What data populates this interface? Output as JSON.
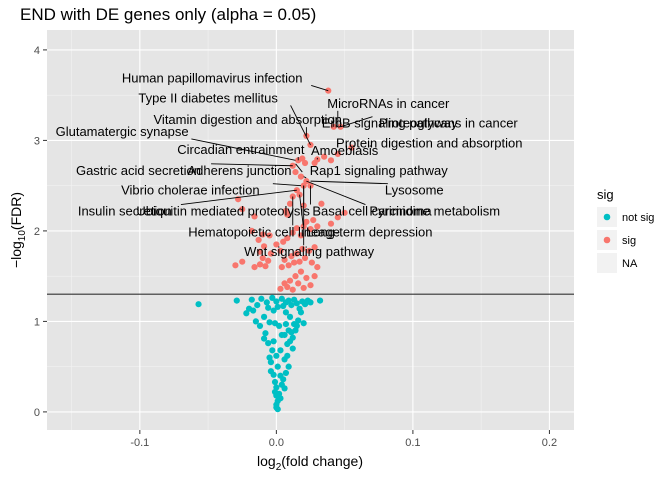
{
  "chart_data": {
    "type": "scatter",
    "title": "END with DE genes only (alpha = 0.05)",
    "xlabel_base": "log",
    "xlabel_sub": "2",
    "xlabel_rest": "(fold change)",
    "ylabel_pre": "−log",
    "ylabel_sub": "10",
    "ylabel_rest": "(FDR)",
    "xlim": [
      -0.168,
      0.218
    ],
    "ylim": [
      -0.2,
      4.22
    ],
    "x_ticks": [
      -0.1,
      0.0,
      0.1,
      0.2
    ],
    "x_tick_labels": [
      "-0.1",
      "0.0",
      "0.1",
      "0.2"
    ],
    "y_ticks": [
      0,
      1,
      2,
      3,
      4
    ],
    "y_tick_labels": [
      "0",
      "1",
      "2",
      "3",
      "4"
    ],
    "hline": 1.301,
    "grid": true,
    "background": "#e5e5e5",
    "colors": {
      "not sig": "#00bfc4",
      "sig": "#f8766d",
      "line": "#333333"
    },
    "legend": {
      "title": "sig",
      "position": "right",
      "entries": [
        {
          "label": "not sig",
          "color": "#00bfc4"
        },
        {
          "label": "sig",
          "color": "#f8766d"
        },
        {
          "label": "NA",
          "color": null
        }
      ]
    },
    "series": [
      {
        "name": "not sig",
        "points": [
          [
            -0.057,
            1.19
          ],
          [
            -0.029,
            1.23
          ],
          [
            -0.022,
            1.09
          ],
          [
            -0.018,
            1.24
          ],
          [
            -0.017,
            1.12
          ],
          [
            -0.014,
            1.18
          ],
          [
            -0.011,
            1.25
          ],
          [
            -0.009,
            1.05
          ],
          [
            -0.007,
            1.21
          ],
          [
            -0.006,
            1.15
          ],
          [
            -0.005,
            0.99
          ],
          [
            -0.003,
            1.26
          ],
          [
            -0.002,
            1.12
          ],
          [
            -0.001,
            0.98
          ],
          [
            0.0,
            1.22
          ],
          [
            0.001,
            1.16
          ],
          [
            -0.012,
            0.95
          ],
          [
            -0.008,
            0.87
          ],
          [
            -0.006,
            0.76
          ],
          [
            -0.004,
            0.55
          ],
          [
            -0.003,
            0.68
          ],
          [
            -0.002,
            0.41
          ],
          [
            -0.001,
            0.33
          ],
          [
            0.0,
            0.27
          ],
          [
            0.0,
            0.18
          ],
          [
            0.001,
            0.12
          ],
          [
            0.0,
            0.05
          ],
          [
            0.001,
            0.03
          ],
          [
            0.0,
            0.08
          ],
          [
            -0.001,
            0.22
          ],
          [
            0.003,
            0.15
          ],
          [
            0.002,
            0.2
          ],
          [
            -0.004,
            0.45
          ],
          [
            -0.005,
            0.6
          ],
          [
            -0.009,
            0.81
          ],
          [
            0.004,
            1.25
          ],
          [
            0.005,
            1.17
          ],
          [
            0.007,
            1.21
          ],
          [
            0.009,
            1.23
          ],
          [
            0.011,
            1.18
          ],
          [
            0.013,
            1.24
          ],
          [
            0.015,
            1.2
          ],
          [
            0.017,
            1.14
          ],
          [
            0.019,
            1.22
          ],
          [
            0.021,
            1.19
          ],
          [
            0.023,
            1.23
          ],
          [
            0.025,
            1.21
          ],
          [
            0.032,
            1.23
          ],
          [
            0.007,
            0.97
          ],
          [
            0.009,
            0.9
          ],
          [
            0.011,
            0.88
          ],
          [
            0.013,
            0.97
          ],
          [
            0.015,
            0.95
          ],
          [
            0.016,
            1.01
          ],
          [
            0.006,
            0.85
          ],
          [
            0.01,
            0.78
          ],
          [
            0.012,
            0.7
          ],
          [
            0.008,
            0.62
          ],
          [
            0.006,
            0.58
          ],
          [
            0.009,
            0.5
          ],
          [
            0.007,
            0.43
          ],
          [
            0.005,
            0.36
          ],
          [
            0.004,
            0.3
          ],
          [
            0.006,
            0.26
          ],
          [
            0.003,
            0.4
          ],
          [
            0.008,
            0.75
          ],
          [
            0.012,
            0.82
          ],
          [
            0.014,
            0.9
          ],
          [
            0.01,
            1.05
          ],
          [
            0.02,
            0.98
          ],
          [
            0.018,
            1.1
          ],
          [
            0.002,
            0.95
          ],
          [
            -0.015,
            1.0
          ],
          [
            -0.02,
            1.14
          ],
          [
            0.0,
            0.62
          ],
          [
            0.001,
            0.5
          ],
          [
            -0.002,
            0.78
          ],
          [
            0.003,
            0.68
          ],
          [
            0.004,
            0.85
          ],
          [
            0.007,
            1.1
          ]
        ]
      },
      {
        "name": "sig",
        "points": [
          [
            -0.03,
            1.62
          ],
          [
            -0.025,
            1.66
          ],
          [
            -0.016,
            1.6
          ],
          [
            -0.012,
            1.63
          ],
          [
            -0.01,
            1.7
          ],
          [
            -0.008,
            1.61
          ],
          [
            -0.006,
            1.67
          ],
          [
            -0.004,
            1.75
          ],
          [
            -0.012,
            1.77
          ],
          [
            -0.009,
            1.83
          ],
          [
            -0.013,
            1.9
          ],
          [
            -0.01,
            1.96
          ],
          [
            0.003,
            1.36
          ],
          [
            0.006,
            1.42
          ],
          [
            0.008,
            1.38
          ],
          [
            0.01,
            1.45
          ],
          [
            0.012,
            1.35
          ],
          [
            0.014,
            1.5
          ],
          [
            0.016,
            1.42
          ],
          [
            0.018,
            1.55
          ],
          [
            0.02,
            1.37
          ],
          [
            0.022,
            1.48
          ],
          [
            0.025,
            1.4
          ],
          [
            0.028,
            1.5
          ],
          [
            0.004,
            1.6
          ],
          [
            0.006,
            1.68
          ],
          [
            0.009,
            1.62
          ],
          [
            0.011,
            1.72
          ],
          [
            0.013,
            1.65
          ],
          [
            0.015,
            1.75
          ],
          [
            0.017,
            1.66
          ],
          [
            0.019,
            1.8
          ],
          [
            0.021,
            1.7
          ],
          [
            0.024,
            1.78
          ],
          [
            0.026,
            1.65
          ],
          [
            0.028,
            1.82
          ],
          [
            0.03,
            1.6
          ],
          [
            0.005,
            1.88
          ],
          [
            0.008,
            1.92
          ],
          [
            0.012,
            1.98
          ],
          [
            0.015,
            2.03
          ],
          [
            0.018,
            1.95
          ],
          [
            0.02,
            2.05
          ],
          [
            0.022,
            2.1
          ],
          [
            0.025,
            2.02
          ],
          [
            0.027,
            2.12
          ],
          [
            0.03,
            2.05
          ],
          [
            0.04,
            2.08
          ],
          [
            0.045,
            2.15
          ],
          [
            0.05,
            2.2
          ],
          [
            -0.016,
            2.16
          ],
          [
            -0.018,
            2.0
          ],
          [
            -0.025,
            2.24
          ],
          [
            -0.028,
            2.35
          ],
          [
            0.007,
            2.22
          ],
          [
            0.01,
            2.3
          ],
          [
            0.012,
            2.38
          ],
          [
            0.015,
            2.45
          ],
          [
            0.017,
            2.4
          ],
          [
            0.02,
            2.5
          ],
          [
            0.022,
            2.55
          ],
          [
            0.025,
            2.5
          ],
          [
            0.018,
            2.6
          ],
          [
            0.014,
            2.65
          ],
          [
            0.012,
            2.72
          ],
          [
            0.016,
            2.78
          ],
          [
            0.019,
            2.8
          ],
          [
            0.021,
            2.75
          ],
          [
            0.028,
            2.75
          ],
          [
            0.03,
            2.79
          ],
          [
            0.035,
            2.82
          ],
          [
            0.04,
            2.78
          ],
          [
            0.045,
            2.85
          ],
          [
            0.055,
            2.92
          ],
          [
            0.025,
            2.95
          ],
          [
            0.022,
            3.05
          ],
          [
            0.042,
            3.15
          ],
          [
            0.047,
            3.15
          ],
          [
            0.038,
            3.55
          ],
          [
            0.008,
            2.18
          ],
          [
            0.003,
            1.78
          ],
          [
            0.0,
            1.85
          ],
          [
            -0.005,
            1.95
          ],
          [
            0.02,
            2.28
          ],
          [
            0.033,
            2.3
          ]
        ]
      }
    ],
    "annotations": [
      {
        "text": "Human papillomavirus infection",
        "point": [
          0.038,
          3.55
        ],
        "label": [
          -0.047,
          3.64
        ],
        "anchor": "middle"
      },
      {
        "text": "Type II diabetes mellitus",
        "point": [
          0.025,
          2.95
        ],
        "label": [
          -0.05,
          3.42
        ],
        "anchor": "middle"
      },
      {
        "text": "MicroRNAs in cancer",
        "point": [
          0.045,
          3.15
        ],
        "label": [
          0.082,
          3.36
        ],
        "anchor": "middle"
      },
      {
        "text": "Vitamin digestion and absorption",
        "point": [
          0.022,
          3.05
        ],
        "label": [
          -0.021,
          3.18
        ],
        "anchor": "middle"
      },
      {
        "text": "ErbB signaling pathway",
        "point": [
          0.042,
          3.15
        ],
        "label": [
          0.083,
          3.14
        ],
        "anchor": "middle"
      },
      {
        "text": "Proteoglycans in cancer",
        "point": [
          0.047,
          3.15
        ],
        "label": [
          0.126,
          3.14
        ],
        "anchor": "middle"
      },
      {
        "text": "Glutamatergic synapse",
        "point": [
          0.014,
          2.78
        ],
        "label": [
          -0.113,
          3.05
        ],
        "anchor": "middle"
      },
      {
        "text": "Protein digestion and absorption",
        "point": [
          0.055,
          2.92
        ],
        "label": [
          0.112,
          2.92
        ],
        "anchor": "middle"
      },
      {
        "text": "Circadian entrainment",
        "point": [
          0.016,
          2.78
        ],
        "label": [
          -0.026,
          2.85
        ],
        "anchor": "middle"
      },
      {
        "text": "Amoebiasis",
        "point": [
          0.03,
          2.79
        ],
        "label": [
          0.05,
          2.84
        ],
        "anchor": "middle"
      },
      {
        "text": "Gastric acid secretion",
        "point": [
          0.012,
          2.72
        ],
        "label": [
          -0.101,
          2.62
        ],
        "anchor": "middle"
      },
      {
        "text": "Adherens junction",
        "point": [
          0.019,
          2.65
        ],
        "label": [
          -0.027,
          2.62
        ],
        "anchor": "middle"
      },
      {
        "text": "Rap1 signaling pathway",
        "point": [
          0.02,
          2.6
        ],
        "label": [
          0.075,
          2.62
        ],
        "anchor": "middle"
      },
      {
        "text": "Vibrio cholerae infection",
        "point": [
          0.018,
          2.5
        ],
        "label": [
          -0.063,
          2.4
        ],
        "anchor": "middle"
      },
      {
        "text": "Lysosome",
        "point": [
          0.025,
          2.55
        ],
        "label": [
          0.101,
          2.4
        ],
        "anchor": "middle"
      },
      {
        "text": "Insulin secretion",
        "point": [
          0.015,
          2.45
        ],
        "label": [
          -0.111,
          2.17
        ],
        "anchor": "middle"
      },
      {
        "text": "Ubiquitin mediated proteolysis",
        "point": [
          0.02,
          2.5
        ],
        "label": [
          -0.039,
          2.17
        ],
        "anchor": "middle"
      },
      {
        "text": "Basal cell carcinoma",
        "point": [
          0.025,
          2.5
        ],
        "label": [
          0.07,
          2.17
        ],
        "anchor": "middle"
      },
      {
        "text": "Pyrimidine metabolism",
        "point": [
          0.022,
          2.55
        ],
        "label": [
          0.116,
          2.17
        ],
        "anchor": "middle"
      },
      {
        "text": "Hematopoietic cell lineage",
        "point": [
          0.012,
          2.38
        ],
        "label": [
          -0.009,
          1.94
        ],
        "anchor": "middle"
      },
      {
        "text": "Long-term depression",
        "point": [
          0.017,
          2.4
        ],
        "label": [
          0.068,
          1.94
        ],
        "anchor": "middle"
      },
      {
        "text": "Wnt signaling pathway",
        "point": [
          0.02,
          2.5
        ],
        "label": [
          0.024,
          1.72
        ],
        "anchor": "middle"
      }
    ]
  }
}
